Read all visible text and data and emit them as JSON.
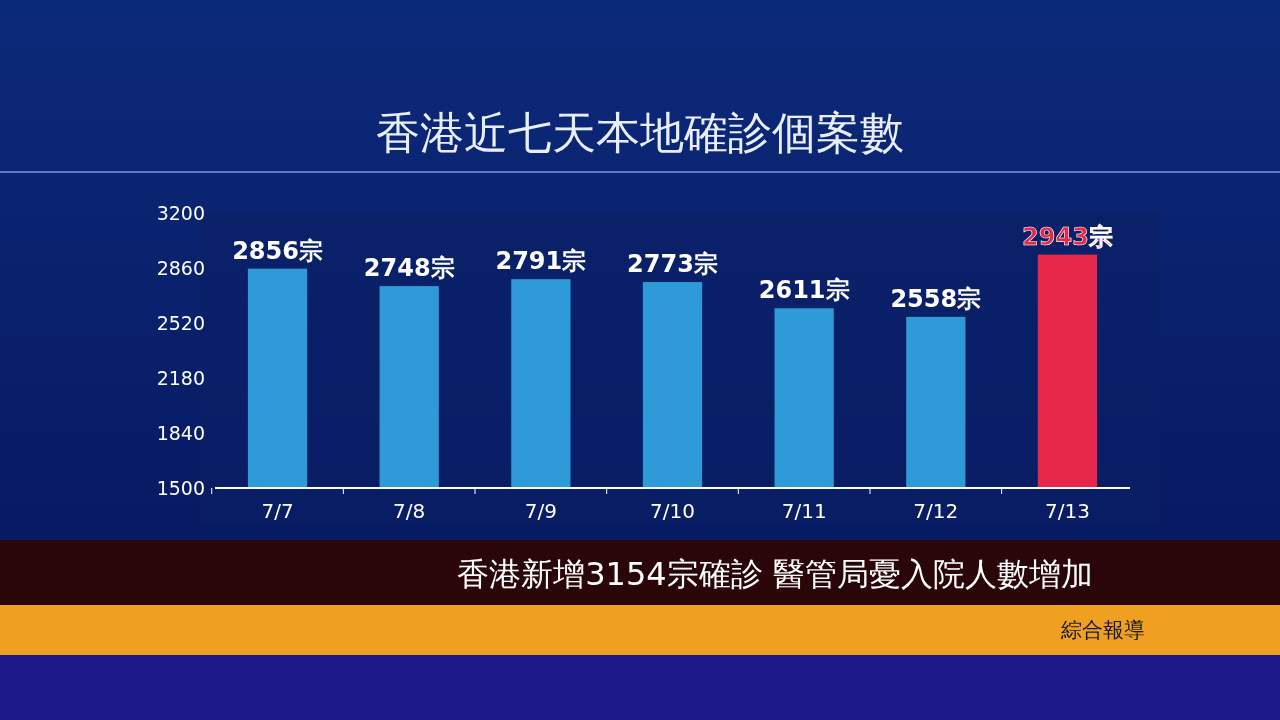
{
  "chart_data": {
    "type": "bar",
    "title": "香港近七天本地確診個案數",
    "categories": [
      "7/7",
      "7/8",
      "7/9",
      "7/10",
      "7/11",
      "7/12",
      "7/13"
    ],
    "values": [
      2856,
      2748,
      2791,
      2773,
      2611,
      2558,
      2943
    ],
    "colors": [
      "#2f9ad8",
      "#2f9ad8",
      "#2f9ad8",
      "#2f9ad8",
      "#2f9ad8",
      "#2f9ad8",
      "#e8284a"
    ],
    "value_labels": [
      "2856宗",
      "2748宗",
      "2791宗",
      "2773宗",
      "2611宗",
      "2558宗",
      "2943宗"
    ],
    "ylim": [
      1500,
      3200
    ],
    "yticks": [
      1500,
      1840,
      2180,
      2520,
      2860,
      3200
    ],
    "annotations": [
      "香港新增3154宗確診 醫管局憂入院人數增加",
      "綜合報導"
    ]
  }
}
